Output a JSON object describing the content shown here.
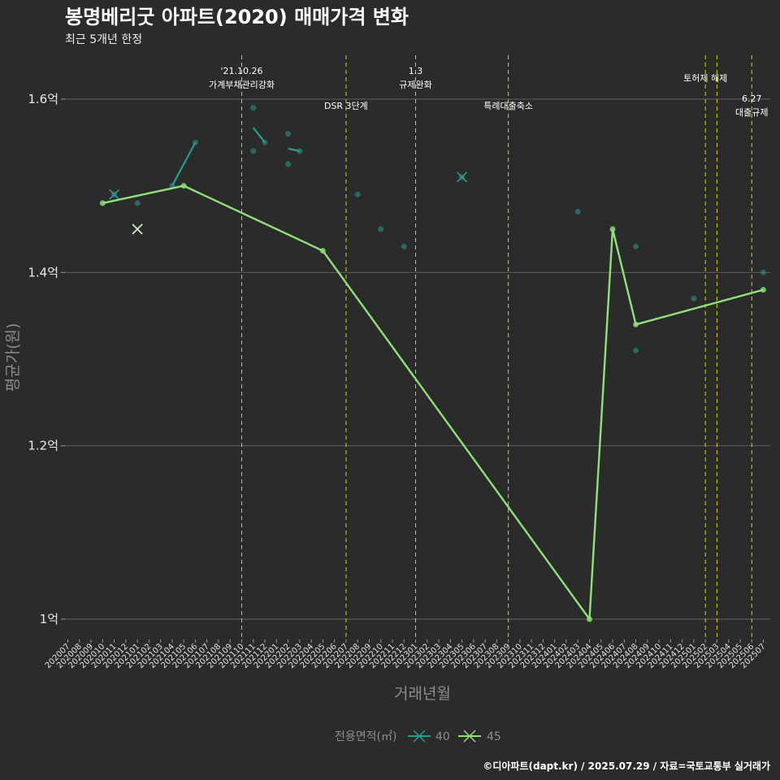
{
  "chart_data": {
    "type": "line",
    "title": "봉명베리굿 아파트(2020) 매매가격 변화",
    "subtitle": "최근 5개년 한정",
    "xlabel": "거래년월",
    "ylabel": "평균가(원)",
    "ylim": [
      0.97,
      1.65
    ],
    "y_ticks": [
      {
        "value": 1.0,
        "label": "1억"
      },
      {
        "value": 1.2,
        "label": "1.2억"
      },
      {
        "value": 1.4,
        "label": "1.4억"
      },
      {
        "value": 1.6,
        "label": "1.6억"
      }
    ],
    "x_categories": [
      "202007",
      "202008",
      "202009",
      "202010",
      "202011",
      "202012",
      "202101",
      "202102",
      "202103",
      "202104",
      "202105",
      "202106",
      "202107",
      "202108",
      "202109",
      "202110",
      "202111",
      "202112",
      "202201",
      "202202",
      "202203",
      "202204",
      "202205",
      "202206",
      "202207",
      "202208",
      "202209",
      "202210",
      "202211",
      "202212",
      "202301",
      "202302",
      "202303",
      "202304",
      "202305",
      "202306",
      "202307",
      "202308",
      "202309",
      "202310",
      "202311",
      "202312",
      "202401",
      "202402",
      "202403",
      "202404",
      "202405",
      "202406",
      "202407",
      "202408",
      "202409",
      "202410",
      "202411",
      "202412",
      "202501",
      "202502",
      "202503",
      "202504",
      "202505",
      "202506",
      "202507"
    ],
    "series": [
      {
        "name": "40",
        "color": "#2a9a94",
        "marker": "x",
        "scatter": [
          {
            "x": "202011",
            "y": 1.49
          },
          {
            "x": "202101",
            "y": 1.48
          },
          {
            "x": "202104",
            "y": 1.5
          },
          {
            "x": "202106",
            "y": 1.55
          },
          {
            "x": "202111",
            "y": 1.59
          },
          {
            "x": "202111",
            "y": 1.54
          },
          {
            "x": "202112",
            "y": 1.55
          },
          {
            "x": "202202",
            "y": 1.56
          },
          {
            "x": "202202",
            "y": 1.525
          },
          {
            "x": "202203",
            "y": 1.54
          },
          {
            "x": "202208",
            "y": 1.49
          },
          {
            "x": "202210",
            "y": 1.45
          },
          {
            "x": "202212",
            "y": 1.43
          },
          {
            "x": "202305",
            "y": 1.51
          },
          {
            "x": "202403",
            "y": 1.47
          },
          {
            "x": "202408",
            "y": 1.43
          },
          {
            "x": "202408",
            "y": 1.31
          },
          {
            "x": "202501",
            "y": 1.37
          },
          {
            "x": "202507",
            "y": 1.4
          }
        ],
        "line": [
          {
            "x": "202104",
            "y": 1.5
          },
          {
            "x": "202106",
            "y": 1.55
          }
        ],
        "line2": [
          {
            "x": "202111",
            "y": 1.567
          },
          {
            "x": "202112",
            "y": 1.55
          }
        ],
        "line3": [
          {
            "x": "202202",
            "y": 1.543
          },
          {
            "x": "202203",
            "y": 1.54
          }
        ],
        "cross": [
          {
            "x": "202011",
            "y": 1.49
          },
          {
            "x": "202305",
            "y": 1.51
          }
        ]
      },
      {
        "name": "45",
        "color": "#8fe07a",
        "marker": "x",
        "values": [
          {
            "x": "202010",
            "y": 1.48
          },
          {
            "x": "202105",
            "y": 1.5
          },
          {
            "x": "202205",
            "y": 1.425
          },
          {
            "x": "202404",
            "y": 1.0
          },
          {
            "x": "202406",
            "y": 1.45
          },
          {
            "x": "202408",
            "y": 1.34
          },
          {
            "x": "202507",
            "y": 1.38
          }
        ],
        "cross": [
          {
            "x": "202101",
            "y": 1.45
          }
        ]
      }
    ],
    "vlines": [
      {
        "x": "202110",
        "lines": [
          "'21.10.26",
          "가계부채관리강화"
        ],
        "row": 0
      },
      {
        "x": "202207",
        "lines": [
          "DSR 3단계"
        ],
        "row": 1
      },
      {
        "x": "202301",
        "lines": [
          "1.3",
          "규제완화"
        ],
        "row": 0
      },
      {
        "x": "202309",
        "lines": [
          "특례대출축소"
        ],
        "row": 1
      },
      {
        "x": "202502",
        "lines": [
          "토허제 해제"
        ],
        "row": 2
      },
      {
        "x": "202503",
        "lines": [],
        "row": 2
      },
      {
        "x": "202506",
        "lines": [
          "6.27",
          "대출규제"
        ],
        "row": 3
      }
    ],
    "legend": {
      "title": "전용면적(㎡)",
      "entries": [
        "40",
        "45"
      ]
    },
    "caption": "©디아파트(dapt.kr) / 2025.07.29 / 자료=국토교통부 실거래가"
  },
  "colors": {
    "background": "#2b2b2b",
    "grid": "#5c5c5c",
    "vline": "#d4d400"
  }
}
